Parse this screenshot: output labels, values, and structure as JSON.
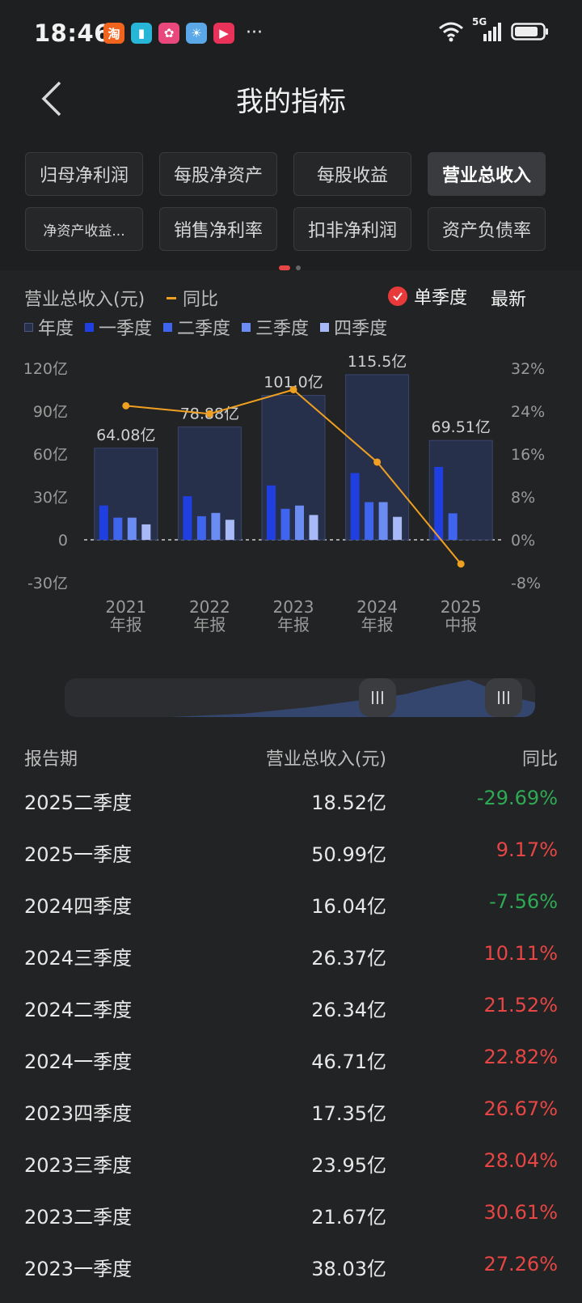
{
  "status": {
    "time": "18:46",
    "network": "5G",
    "app_icons": [
      {
        "name": "taobao-app-icon",
        "glyph": "淘",
        "color": "#f0641e"
      },
      {
        "name": "reader-app-icon",
        "glyph": "▮",
        "color": "#27b6d8"
      },
      {
        "name": "shop-app-icon",
        "glyph": "✿",
        "color": "#e8487c"
      },
      {
        "name": "weather-app-icon",
        "glyph": "☀",
        "color": "#5aa8e8"
      },
      {
        "name": "video-app-icon",
        "glyph": "▶",
        "color": "#e8325a"
      }
    ],
    "more": "···"
  },
  "nav": {
    "title": "我的指标"
  },
  "tabs": [
    {
      "label": "归母净利润",
      "active": false
    },
    {
      "label": "每股净资产",
      "active": false
    },
    {
      "label": "每股收益",
      "active": false
    },
    {
      "label": "营业总收入",
      "active": true
    },
    {
      "label": "净资产收益...",
      "active": false
    },
    {
      "label": "销售净利率",
      "active": false
    },
    {
      "label": "扣非净利润",
      "active": false
    },
    {
      "label": "资产负债率",
      "active": false
    }
  ],
  "chart_header": {
    "title": "营业总收入(元)",
    "yoy_label": "同比",
    "single_quarter": "单季度",
    "latest": "最新",
    "legend": [
      {
        "label": "年度",
        "color": "#27304a"
      },
      {
        "label": "一季度",
        "color": "#1f3fe0"
      },
      {
        "label": "二季度",
        "color": "#3f64ee"
      },
      {
        "label": "三季度",
        "color": "#6b8cf2"
      },
      {
        "label": "四季度",
        "color": "#a7b9f6"
      }
    ]
  },
  "chart_data": {
    "type": "bar",
    "categories": [
      {
        "year": "2021",
        "kind": "年报"
      },
      {
        "year": "2022",
        "kind": "年报"
      },
      {
        "year": "2023",
        "kind": "年报"
      },
      {
        "year": "2024",
        "kind": "年报"
      },
      {
        "year": "2025",
        "kind": "中报"
      }
    ],
    "annual_labels": [
      "64.08亿",
      "78.88亿",
      "101.0亿",
      "115.5亿",
      "69.51亿"
    ],
    "annual_values": [
      64.08,
      78.88,
      101.0,
      115.5,
      69.51
    ],
    "quarterly": [
      [
        24.0,
        15.5,
        15.5,
        10.8
      ],
      [
        30.5,
        16.5,
        18.8,
        14.0
      ],
      [
        38.03,
        21.67,
        23.95,
        17.35
      ],
      [
        46.71,
        26.34,
        26.37,
        16.04
      ],
      [
        50.99,
        18.52
      ]
    ],
    "yoy": [
      25.0,
      23.5,
      28.0,
      14.5,
      -4.5
    ],
    "left_axis": {
      "min": -30,
      "max": 120,
      "ticks": [
        120,
        90,
        60,
        30,
        0,
        -30
      ],
      "labels": [
        "120亿",
        "90亿",
        "60亿",
        "30亿",
        "0",
        "-30亿"
      ]
    },
    "right_axis": {
      "min": -8,
      "max": 32,
      "ticks": [
        32,
        24,
        16,
        8,
        0,
        -8
      ],
      "labels": [
        "32%",
        "24%",
        "16%",
        "8%",
        "0%",
        "-8%"
      ]
    },
    "colors": {
      "annual": "#27304a",
      "q1": "#1f3fe0",
      "q2": "#3f64ee",
      "q3": "#6b8cf2",
      "q4": "#a7b9f6",
      "yoy": "#f0a020"
    }
  },
  "table": {
    "headers": [
      "报告期",
      "营业总收入(元)",
      "同比"
    ],
    "rows": [
      {
        "period": "2025二季度",
        "revenue": "18.52亿",
        "yoy": "-29.69%",
        "dir": "neg"
      },
      {
        "period": "2025一季度",
        "revenue": "50.99亿",
        "yoy": "9.17%",
        "dir": "pos"
      },
      {
        "period": "2024四季度",
        "revenue": "16.04亿",
        "yoy": "-7.56%",
        "dir": "neg"
      },
      {
        "period": "2024三季度",
        "revenue": "26.37亿",
        "yoy": "10.11%",
        "dir": "pos"
      },
      {
        "period": "2024二季度",
        "revenue": "26.34亿",
        "yoy": "21.52%",
        "dir": "pos"
      },
      {
        "period": "2024一季度",
        "revenue": "46.71亿",
        "yoy": "22.82%",
        "dir": "pos"
      },
      {
        "period": "2023四季度",
        "revenue": "17.35亿",
        "yoy": "26.67%",
        "dir": "pos"
      },
      {
        "period": "2023三季度",
        "revenue": "23.95亿",
        "yoy": "28.04%",
        "dir": "pos"
      },
      {
        "period": "2023二季度",
        "revenue": "21.67亿",
        "yoy": "30.61%",
        "dir": "pos"
      },
      {
        "period": "2023一季度",
        "revenue": "38.03亿",
        "yoy": "27.26%",
        "dir": "pos"
      }
    ]
  }
}
